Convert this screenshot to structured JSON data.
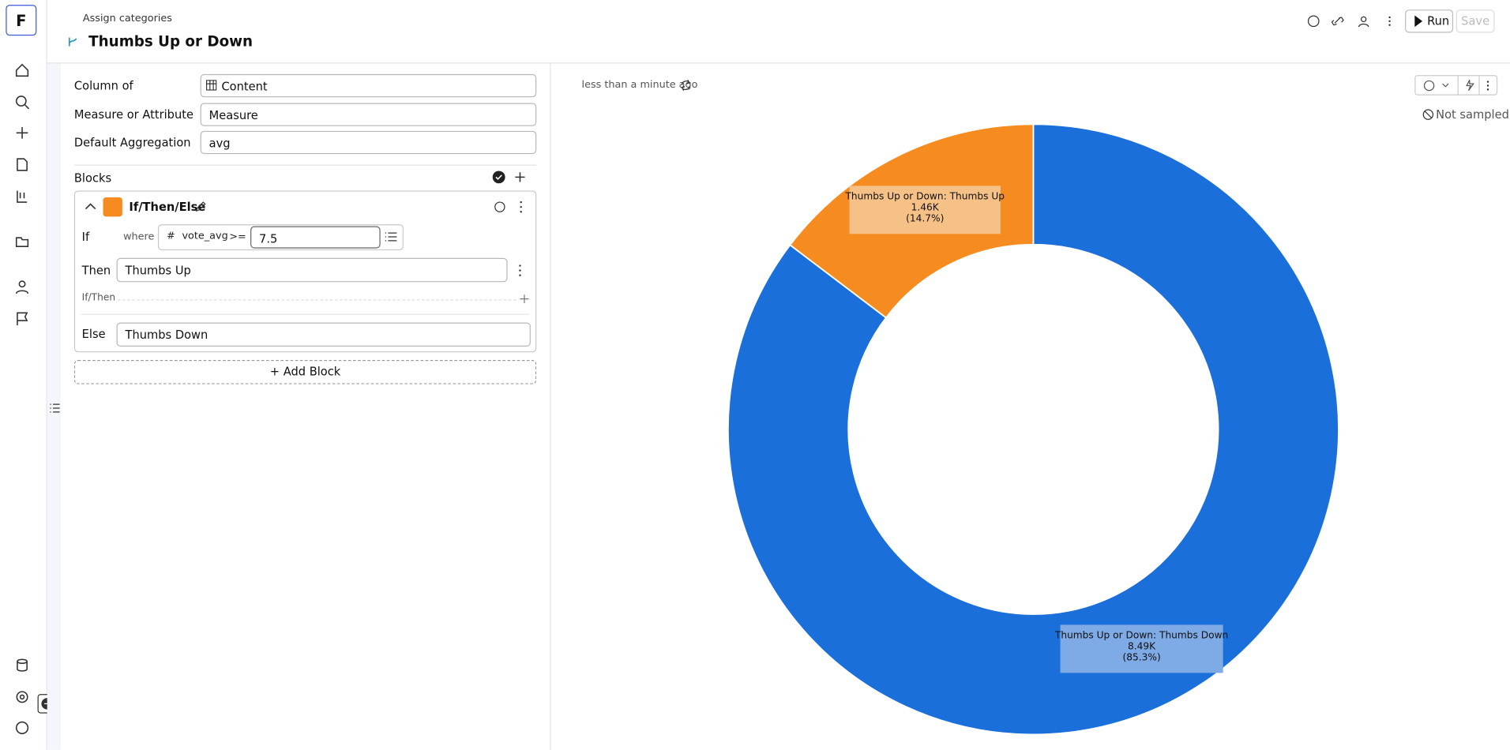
{
  "header": {
    "logo": "F",
    "breadcrumb": "Assign categories",
    "title": "Thumbs Up or Down",
    "run": "Run",
    "save": "Save"
  },
  "form": {
    "fields": [
      {
        "label": "Column of",
        "value": "Content"
      },
      {
        "label": "Measure or Attribute",
        "value": "Measure"
      },
      {
        "label": "Default Aggregation",
        "value": "avg"
      }
    ]
  },
  "blocks": {
    "title": "Blocks",
    "block": {
      "name": "If/Then/Else",
      "if": "If",
      "where": "where",
      "column": "vote_avg",
      "operator": ">=",
      "threshold": 7.5,
      "then": "Then",
      "then_value": "Thumbs Up",
      "if_then": "If/Then",
      "else": "Else",
      "else_value": "Thumbs Down"
    },
    "add": "Add Block"
  },
  "result": {
    "updated": "less than a minute ago",
    "sampling": "Not sampled"
  },
  "chart_data": {
    "type": "donut",
    "categories": [
      "Thumbs Up or Down: Thumbs Down",
      "Thumbs Up or Down: Thumbs Up"
    ],
    "values": [
      8490,
      1460
    ],
    "value_labels": [
      "8.49K",
      "1.46K"
    ],
    "percent_labels": [
      "(85.3%)",
      "(14.7%)"
    ],
    "colors": [
      "#1a6fdb",
      "#f68b1f"
    ],
    "label_colors": [
      "#7eaae6",
      "#f6c187"
    ]
  }
}
